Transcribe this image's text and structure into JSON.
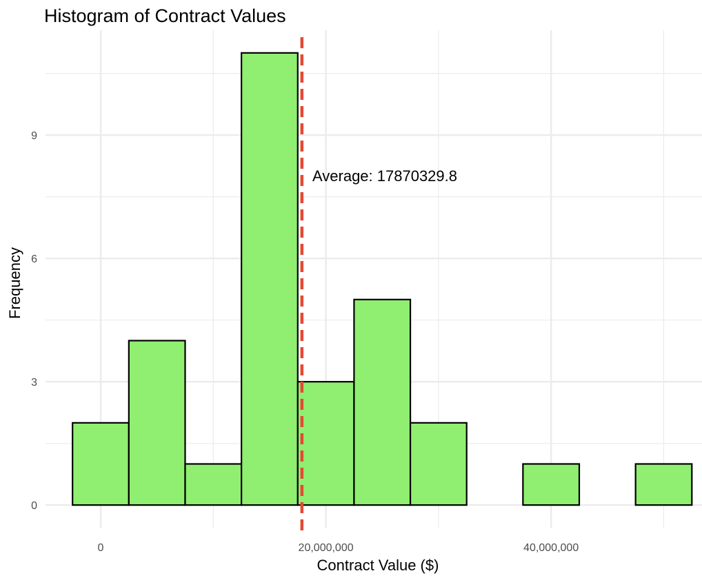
{
  "chart_data": {
    "type": "bar",
    "title": "Histogram of Contract Values",
    "xlabel": "Contract Value ($)",
    "ylabel": "Frequency",
    "bin_width": 5000000,
    "bins": [
      {
        "center": 0,
        "count": 2
      },
      {
        "center": 5000000,
        "count": 4
      },
      {
        "center": 10000000,
        "count": 1
      },
      {
        "center": 15000000,
        "count": 11
      },
      {
        "center": 20000000,
        "count": 3
      },
      {
        "center": 25000000,
        "count": 5
      },
      {
        "center": 30000000,
        "count": 2
      },
      {
        "center": 35000000,
        "count": 0
      },
      {
        "center": 40000000,
        "count": 1
      },
      {
        "center": 45000000,
        "count": 0
      },
      {
        "center": 50000000,
        "count": 1
      }
    ],
    "xlim": [
      -4900000,
      53400000
    ],
    "ylim": [
      -0.55,
      11.55
    ],
    "x_ticks": [
      {
        "value": 0,
        "label": "0"
      },
      {
        "value": 20000000,
        "label": "20,000,000"
      },
      {
        "value": 40000000,
        "label": "40,000,000"
      }
    ],
    "x_minor_ticks": [
      10000000,
      30000000,
      50000000
    ],
    "y_ticks": [
      {
        "value": 0,
        "label": "0"
      },
      {
        "value": 3,
        "label": "3"
      },
      {
        "value": 6,
        "label": "6"
      },
      {
        "value": 9,
        "label": "9"
      }
    ],
    "y_minor_ticks": [
      1.5,
      4.5,
      7.5,
      10.5
    ],
    "mean_line": {
      "value": 17870329.8,
      "color": "#e34a33",
      "style": "dashed"
    },
    "annotation": {
      "text": "Average: 17870329.8",
      "x": 18800000,
      "y": 8
    },
    "bar_fill": "#90ee70",
    "bar_stroke": "#000000",
    "grid": true,
    "grid_color": "#ebebeb",
    "legend": "none"
  }
}
